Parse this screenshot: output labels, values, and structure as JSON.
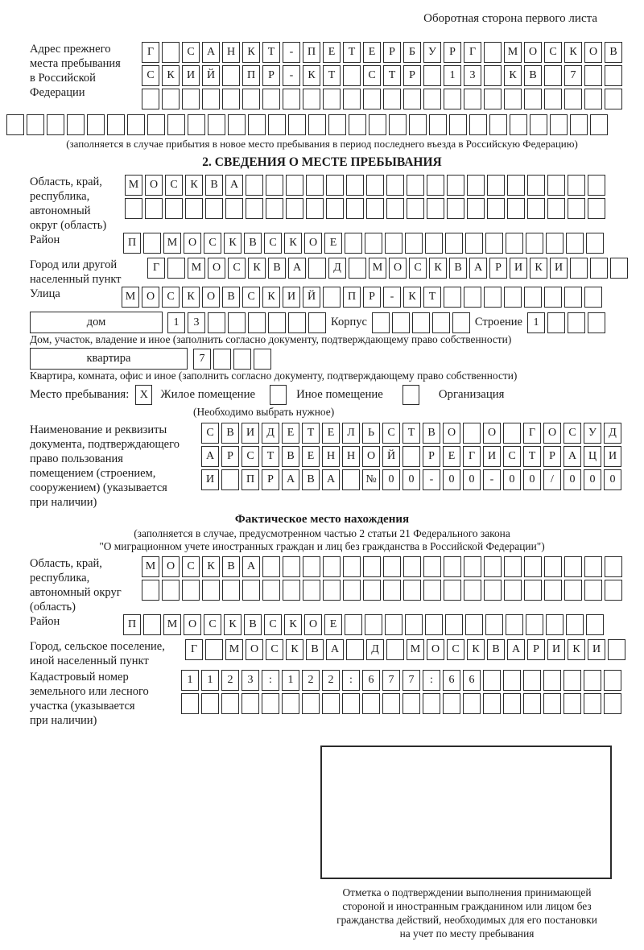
{
  "header": {
    "note": "Оборотная сторона первого листа"
  },
  "prev_address": {
    "label_lines": [
      "Адрес прежнего",
      "места пребывания",
      "в Российской",
      "Федерации"
    ],
    "row1": {
      "cells": 24,
      "text": "Г САНКТ-ПЕТЕРБУРГ МОСКОВ"
    },
    "row2": {
      "cells": 24,
      "text": "СКИЙ ПР-КТ СТР 13 КВ 7"
    },
    "row3": {
      "cells": 24,
      "text": ""
    },
    "row4": {
      "cells": 30,
      "text": ""
    },
    "note": "(заполняется в случае прибытия в новое место пребывания в период последнего въезда в Российскую Федерацию)"
  },
  "section2": {
    "title": "2. СВЕДЕНИЯ О МЕСТЕ ПРЕБЫВАНИЯ",
    "region": {
      "label_lines": [
        "Область, край,",
        "республика,",
        "автономный",
        "округ (область)"
      ],
      "row1": {
        "cells": 24,
        "text": "МОСКВА"
      },
      "row2": {
        "cells": 24,
        "text": ""
      }
    },
    "district": {
      "label": "Район",
      "row": {
        "cells": 24,
        "text": "П МОСКВСКОЕ"
      }
    },
    "city": {
      "label_lines": [
        "Город или другой",
        "населенный пункт"
      ],
      "row": {
        "cells": 24,
        "text": "Г МОСКВА Д МОСКВАРИКИ"
      }
    },
    "street": {
      "label": "Улица",
      "row": {
        "cells": 24,
        "text": "МОСКОВСКИЙ ПР-КТ"
      }
    },
    "house": {
      "box_label": "дом",
      "num_row": {
        "cells": 8,
        "text": "13"
      },
      "korpus_label": "Корпус",
      "korpus_row": {
        "cells": 5,
        "text": ""
      },
      "stroenie_label": "Строение",
      "stroenie_row": {
        "cells": 4,
        "text": "1"
      },
      "note": "Дом, участок, владение и иное (заполнить согласно документу, подтверждающему право собственности)"
    },
    "apartment": {
      "box_label": "квартира",
      "num_row": {
        "cells": 4,
        "text": "7"
      },
      "note": "Квартира, комната, офис и иное (заполнить согласно документу, подтверждающему право собственности)"
    },
    "stay_type": {
      "label": "Место пребывания:",
      "options": [
        {
          "label": "Жилое помещение",
          "checked": "X"
        },
        {
          "label": "Иное помещение",
          "checked": ""
        },
        {
          "label": "Организация",
          "checked": ""
        }
      ],
      "note": "(Необходимо выбрать нужное)"
    },
    "document": {
      "label_lines": [
        "Наименование и реквизиты",
        "документа, подтверждающего",
        "право пользования",
        "помещением (строением,",
        "сооружением) (указывается",
        "при наличии)"
      ],
      "row1": {
        "cells": 21,
        "text": "СВИДЕТЕЛЬСТВО О ГОСУД"
      },
      "row2": {
        "cells": 21,
        "text": "АРСТВЕННОЙ РЕГИСТРАЦИ"
      },
      "row3": {
        "cells": 21,
        "text": "И ПРАВА №00-00-00/000"
      }
    }
  },
  "actual_location": {
    "title": "Фактическое место нахождения",
    "note_lines": [
      "(заполняется в случае, предусмотренном частью 2 статьи 21 Федерального закона",
      "\"О миграционном учете иностранных граждан и лиц без гражданства в Российской Федерации\")"
    ],
    "region": {
      "label_lines": [
        "Область, край,",
        "республика,",
        "автономный округ",
        "(область)"
      ],
      "row1": {
        "cells": 24,
        "text": "МОСКВА"
      },
      "row2": {
        "cells": 24,
        "text": ""
      }
    },
    "district": {
      "label": "Район",
      "row": {
        "cells": 24,
        "text": "П МОСКВСКОЕ"
      }
    },
    "city": {
      "label_lines": [
        "Город, сельское поселение,",
        "иной населенный пункт"
      ],
      "row": {
        "cells": 22,
        "text": "Г МОСКВА Д МОСКВАРИКИ"
      }
    },
    "cadastre": {
      "label_lines": [
        "Кадастровый номер",
        "земельного или лесного",
        "участка (указывается",
        "при наличии)"
      ],
      "row1": {
        "cells": 22,
        "text": "1123:122:677:66"
      },
      "row2": {
        "cells": 22,
        "text": ""
      }
    },
    "stamp": {
      "caption_lines": [
        "Отметка о подтверждении выполнения принимающей",
        "стороной и иностранным гражданином или лицом без",
        "гражданства действий, необходимых для его постановки",
        "на учет по месту пребывания"
      ]
    }
  }
}
